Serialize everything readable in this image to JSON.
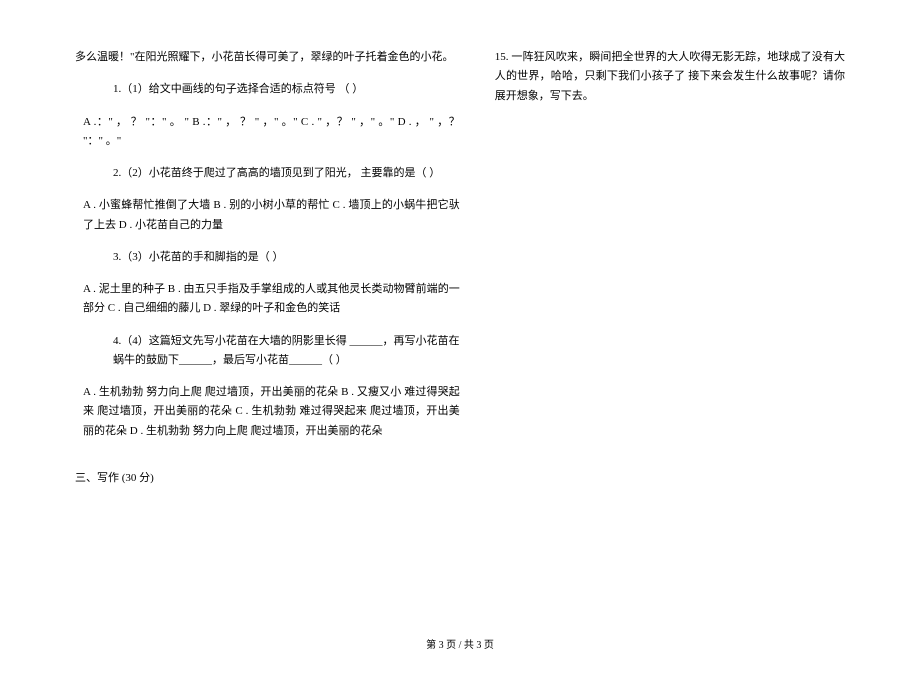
{
  "background_color": "#ffffff",
  "text_color": "#000000",
  "font_family": "SimSun",
  "base_font_size_pt": 9,
  "left_column": {
    "intro_line1": "多么温暖！\"在阳光照耀下，小花苗长得可美了，翠绿的叶子托着金色的小花。",
    "q1_stem": "1.（1）给文中画线的句子选择合适的标点符号 （            ）",
    "q1_options": "A .：\" ，           ？ \"：\" 。 \"     B .：\" ，         ？ \" ，\" 。\"        C . \" ，？ \" ，\" 。\"         D . ， \" ，？ \"：\" 。\"",
    "q2_stem": "2.（2）小花苗终于爬过了高高的墙顶见到了阳光，   主要靠的是（           ）",
    "q2_options": "A . 小蜜蜂帮忙推倒了大墙     B . 别的小树小草的帮忙      C . 墙顶上的小蜗牛把它驮了上去      D . 小花苗自己的力量",
    "q3_stem": "3.（3）小花苗的手和脚指的是（             ）",
    "q3_options": "A . 泥土里的种子     B . 由五只手指及手掌组成的人或其他灵长类动物臂前端的一部分       C . 自己细细的藤儿     D . 翠绿的叶子和金色的笑话",
    "q4_stem": "4.（4）这篇短文先写小花苗在大墙的阴影里长得 ______，再写小花苗在蜗牛的鼓励下______，最后写小花苗______（          ）",
    "q4_options": "A . 生机勃勃          努力向上爬                          爬过墙顶，开出美丽的花朵     B . 又瘦又小             难过得哭起来               爬过墙顶，开出美丽的花朵         C . 生机勃勃                难过得哭起来               爬过墙顶，开出美丽的花朵     D . 生机勃勃           努力向上爬                   爬过墙顶，开出美丽的花朵",
    "section_header": "三、写作 (30 分)"
  },
  "right_column": {
    "q15": "15. 一阵狂风吹来，瞬间把全世界的大人吹得无影无踪，地球成了没有大人的世界，哈哈，只剩下我们小孩子了    接下来会发生什么故事呢？请你展开想象，写下去。"
  },
  "footer": "第 3 页     /    共 3 页"
}
